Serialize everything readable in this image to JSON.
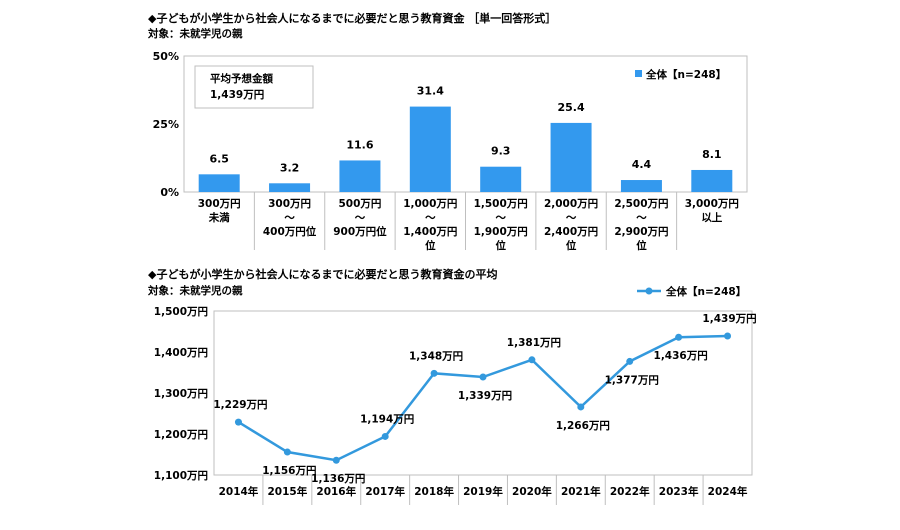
{
  "chart_data": [
    {
      "type": "bar",
      "title": "◆子どもが小学生から社会人になるまでに必要だと思う教育資金 ［単一回答形式］",
      "subtitle": "対象：未就学児の親",
      "categories": [
        [
          "300万円",
          "未満"
        ],
        [
          "300万円",
          "～",
          "400万円位"
        ],
        [
          "500万円",
          "～",
          "900万円位"
        ],
        [
          "1,000万円",
          "～",
          "1,400万円",
          "位"
        ],
        [
          "1,500万円",
          "～",
          "1,900万円",
          "位"
        ],
        [
          "2,000万円",
          "～",
          "2,400万円",
          "位"
        ],
        [
          "2,500万円",
          "～",
          "2,900万円",
          "位"
        ],
        [
          "3,000万円",
          "以上"
        ]
      ],
      "series": [
        {
          "name": "全体【n=248】",
          "values": [
            6.5,
            3.2,
            11.6,
            31.4,
            9.3,
            25.4,
            4.4,
            8.1
          ]
        }
      ],
      "data_labels": [
        "6.5",
        "3.2",
        "11.6",
        "31.4",
        "9.3",
        "25.4",
        "4.4",
        "8.1"
      ],
      "ylim": [
        0,
        50
      ],
      "yticks": [
        "0%",
        "25%",
        "50%"
      ],
      "annotation": [
        "平均予想金額",
        "1,439万円"
      ],
      "legend": "top-right",
      "color": "#3399ee"
    },
    {
      "type": "line",
      "title": "◆子どもが小学生から社会人になるまでに必要だと思う教育資金の平均",
      "subtitle": "対象：未就学児の親",
      "x": [
        "2014年",
        "2015年",
        "2016年",
        "2017年",
        "2018年",
        "2019年",
        "2020年",
        "2021年",
        "2022年",
        "2023年",
        "2024年"
      ],
      "series": [
        {
          "name": "全体【n=248】",
          "values": [
            1229,
            1156,
            1136,
            1194,
            1348,
            1339,
            1381,
            1266,
            1377,
            1436,
            1439
          ]
        }
      ],
      "data_labels": [
        "1,229万円",
        "1,156万円",
        "1,136万円",
        "1,194万円",
        "1,348万円",
        "1,339万円",
        "1,381万円",
        "1,266万円",
        "1,377万円",
        "1,436万円",
        "1,439万円"
      ],
      "ylim": [
        1100,
        1500
      ],
      "yticks": [
        "1,100万円",
        "1,200万円",
        "1,300万円",
        "1,400万円",
        "1,500万円"
      ],
      "legend": "top-right",
      "color": "#3399dd"
    }
  ]
}
